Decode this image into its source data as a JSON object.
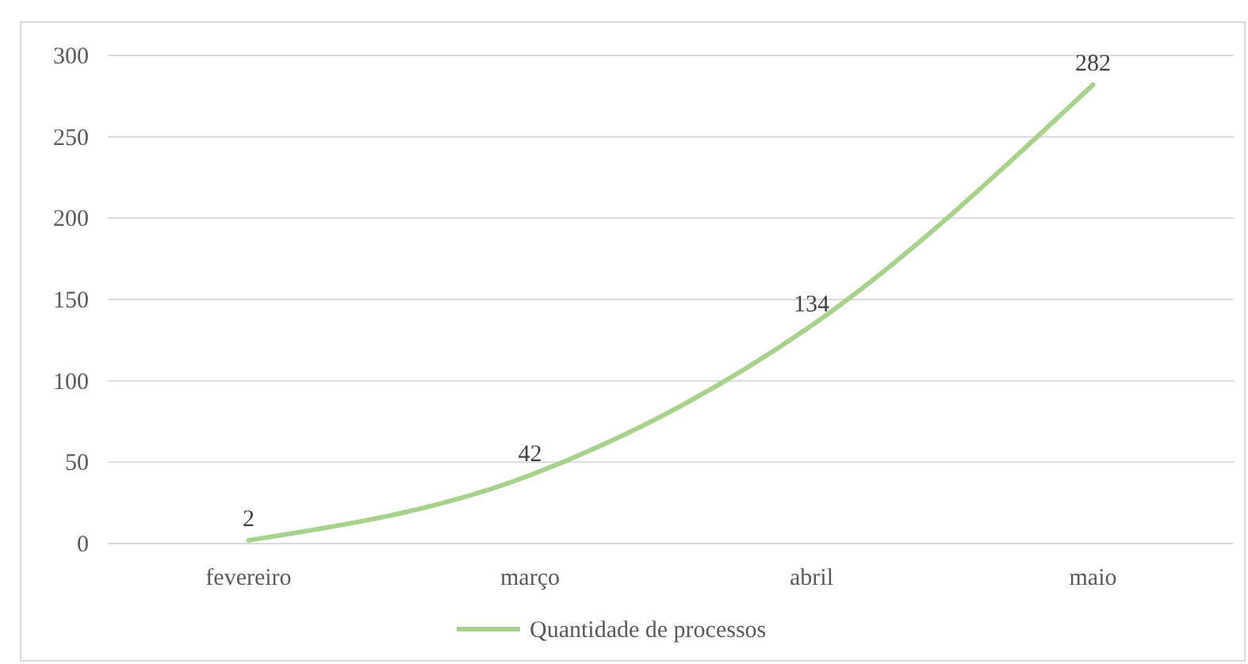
{
  "chart_data": {
    "type": "line",
    "categories": [
      "fevereiro",
      "março",
      "abril",
      "maio"
    ],
    "series": [
      {
        "name": "Quantidade de processos",
        "color": "#a9d18e",
        "values": [
          2,
          42,
          134,
          282
        ]
      }
    ],
    "ylim": [
      0,
      300
    ],
    "yticks": [
      0,
      50,
      100,
      150,
      200,
      250,
      300
    ],
    "grid": "y",
    "legend": "bottom",
    "data_labels": true,
    "marker": "none",
    "line_style": "solid"
  }
}
